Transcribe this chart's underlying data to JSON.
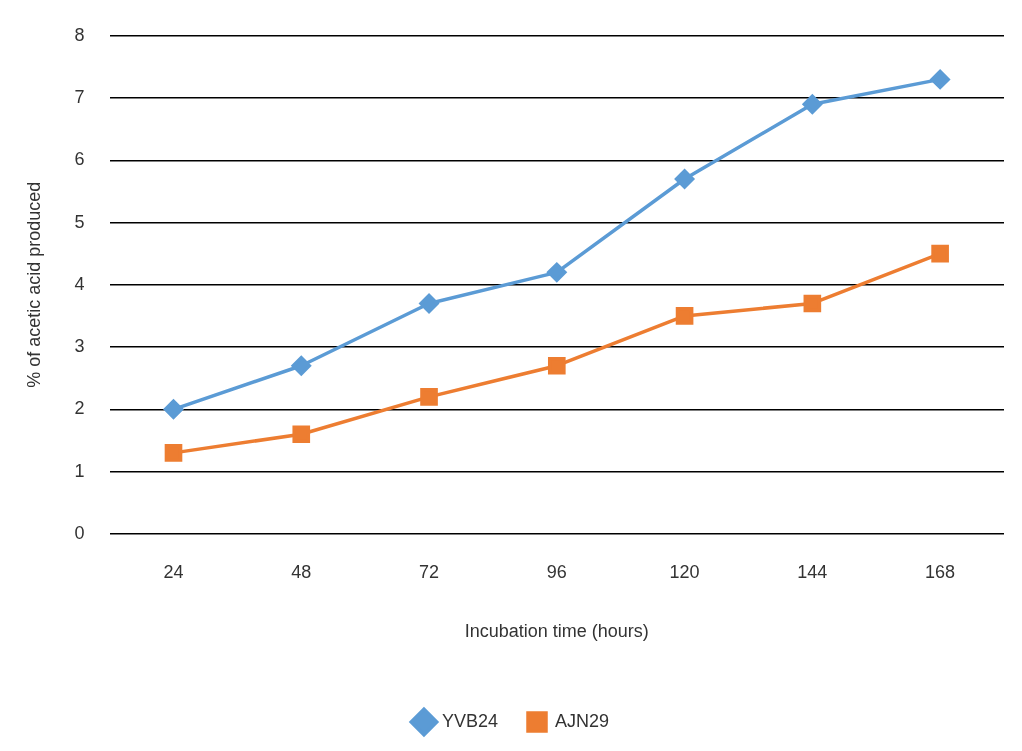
{
  "chart_data": {
    "type": "line",
    "xlabel": "Incubation time (hours)",
    "ylabel": "% of acetic acid produced",
    "categories": [
      "24",
      "48",
      "72",
      "96",
      "120",
      "144",
      "168"
    ],
    "series": [
      {
        "name": "YVB24",
        "color": "#5b9bd5",
        "marker": "diamond",
        "values": [
          2.0,
          2.7,
          3.7,
          4.2,
          5.7,
          6.9,
          7.3
        ]
      },
      {
        "name": "AJN29",
        "color": "#ed7d31",
        "marker": "square",
        "values": [
          1.3,
          1.6,
          2.2,
          2.7,
          3.5,
          3.7,
          4.5
        ]
      }
    ],
    "ylim": [
      0,
      8
    ],
    "yticks": [
      0,
      1,
      2,
      3,
      4,
      5,
      6,
      7,
      8
    ],
    "grid": "y",
    "legend": "bottom"
  }
}
